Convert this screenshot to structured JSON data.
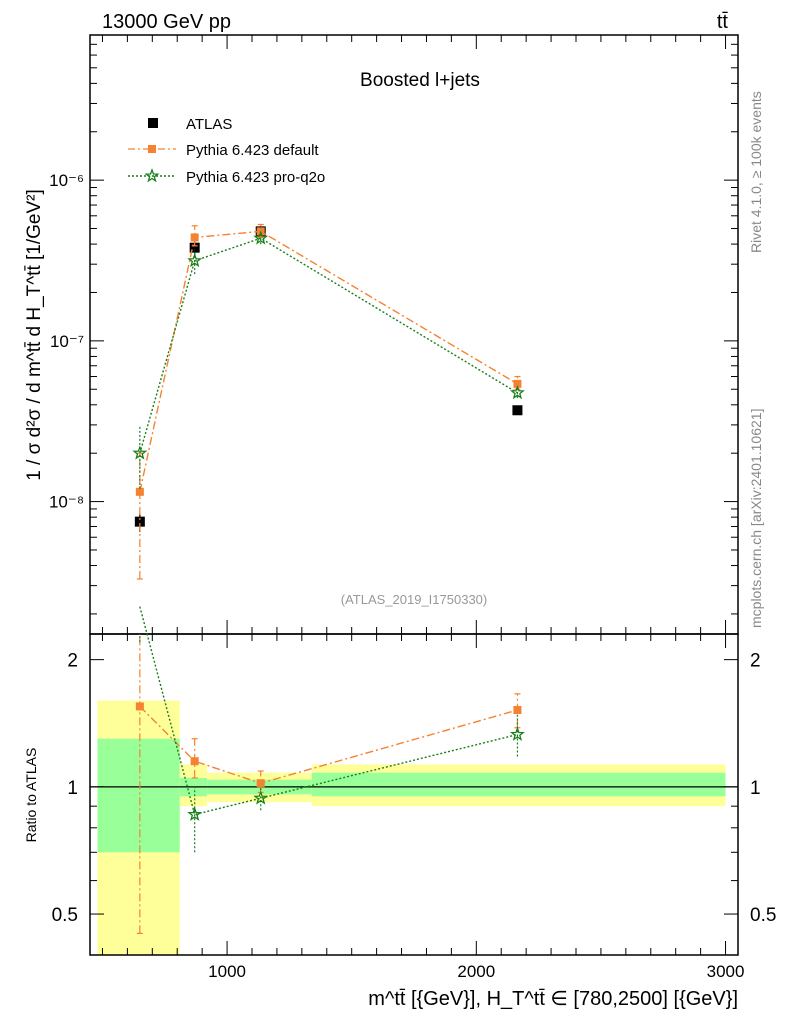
{
  "header": {
    "left": "13000 GeV pp",
    "right": "tt̄"
  },
  "plot_title": "Boosted l+jets",
  "analysis_id": "(ATLAS_2019_I1750330)",
  "side_text": {
    "rivet": "Rivet 4.1.0, ≥ 100k events",
    "mcplots": "mcplots.cern.ch [arXiv:2401.10621]"
  },
  "axes": {
    "top_ylabel": "1 / σ d²σ / d m^tt̄ d H_T^tt̄ [1/GeV²]",
    "bottom_ylabel": "Ratio to ATLAS",
    "xlabel": "m^tt̄ [{GeV}], H_T^tt̄ ∈ [780,2500] [{GeV}]",
    "top_ticks": [
      {
        "value": 1e-08,
        "label": "10⁻⁸"
      },
      {
        "value": 1e-07,
        "label": "10⁻⁷"
      },
      {
        "value": 1e-06,
        "label": "10⁻⁶"
      }
    ],
    "ratio_ticks": [
      {
        "value": 0.5,
        "label": "0.5"
      },
      {
        "value": 1,
        "label": "1"
      },
      {
        "value": 2,
        "label": "2"
      }
    ],
    "x_ticks": [
      {
        "value": 1000,
        "label": "1000"
      },
      {
        "value": 2000,
        "label": "2000"
      },
      {
        "value": 3000,
        "label": "3000"
      }
    ]
  },
  "legend": [
    {
      "label": "ATLAS",
      "color": "#000000",
      "marker": "square"
    },
    {
      "label": "Pythia 6.423 default",
      "color": "#f58230",
      "marker": "square"
    },
    {
      "label": "Pythia 6.423 pro-q2o",
      "color": "#1a7f1a",
      "marker": "star"
    }
  ],
  "chart_data": {
    "type": "scatter",
    "title": "Boosted l+jets",
    "xlabel": "m^tt̄ [{GeV}]",
    "ylabel": "1 / σ d²σ / d m^tt̄ d H_T^tt̄ [1/GeV²]",
    "xlim": [
      450,
      3050
    ],
    "ylim": [
      1.5e-09,
      8e-06
    ],
    "yscale": "log",
    "ratio_ylim": [
      0.4,
      2.3
    ],
    "bins": [
      {
        "x": 650,
        "xlo": 480,
        "xhi": 810
      },
      {
        "x": 870,
        "xlo": 810,
        "xhi": 920
      },
      {
        "x": 1135,
        "xlo": 920,
        "xhi": 1340
      },
      {
        "x": 2165,
        "xlo": 1340,
        "xhi": 3000
      }
    ],
    "series": [
      {
        "name": "ATLAS",
        "color": "#000000",
        "marker": "square",
        "values": [
          7.5e-09,
          3.8e-07,
          4.8e-07,
          3.7e-08
        ],
        "err": [
          [
            6.5e-09,
            8.5e-09
          ],
          [
            3.3e-07,
            4.3e-07
          ],
          [
            4.5e-07,
            5.1e-07
          ],
          [
            3.5e-08,
            3.9e-08
          ]
        ],
        "band_inner": [
          [
            0.7,
            1.3
          ],
          [
            0.95,
            1.05
          ],
          [
            0.96,
            1.04
          ],
          [
            0.95,
            1.08
          ]
        ],
        "band_outer": [
          [
            0.35,
            1.6
          ],
          [
            0.9,
            1.13
          ],
          [
            0.92,
            1.08
          ],
          [
            0.9,
            1.13
          ]
        ]
      },
      {
        "name": "Pythia 6.423 default",
        "color": "#f58230",
        "marker": "square",
        "line": "dashdot",
        "values": [
          1.15e-08,
          4.4e-07,
          4.8e-07,
          5.4e-08
        ],
        "err": [
          [
            3.3e-09,
            2e-08
          ],
          [
            3.9e-07,
            5.2e-07
          ],
          [
            4.4e-07,
            5.3e-07
          ],
          [
            5e-08,
            6e-08
          ]
        ],
        "ratio": [
          1.55,
          1.15,
          1.02,
          1.52
        ],
        "ratio_err": [
          [
            0.45,
            2.4
          ],
          [
            1.05,
            1.3
          ],
          [
            0.97,
            1.09
          ],
          [
            1.38,
            1.66
          ]
        ]
      },
      {
        "name": "Pythia 6.423 pro-q2o",
        "color": "#1a7f1a",
        "marker": "star",
        "line": "dotted",
        "values": [
          2e-08,
          3.15e-07,
          4.35e-07,
          4.75e-08
        ],
        "err": [
          [
            1.2e-08,
            3e-08
          ],
          [
            2.6e-07,
            3.7e-07
          ],
          [
            4e-07,
            4.7e-07
          ],
          [
            4.4e-08,
            5.1e-08
          ]
        ],
        "ratio": [
          2.67,
          0.86,
          0.94,
          1.33
        ],
        "ratio_err": [
          [
            2.2,
            3.0
          ],
          [
            0.7,
            1.0
          ],
          [
            0.88,
            1.0
          ],
          [
            1.18,
            1.48
          ]
        ]
      }
    ]
  }
}
